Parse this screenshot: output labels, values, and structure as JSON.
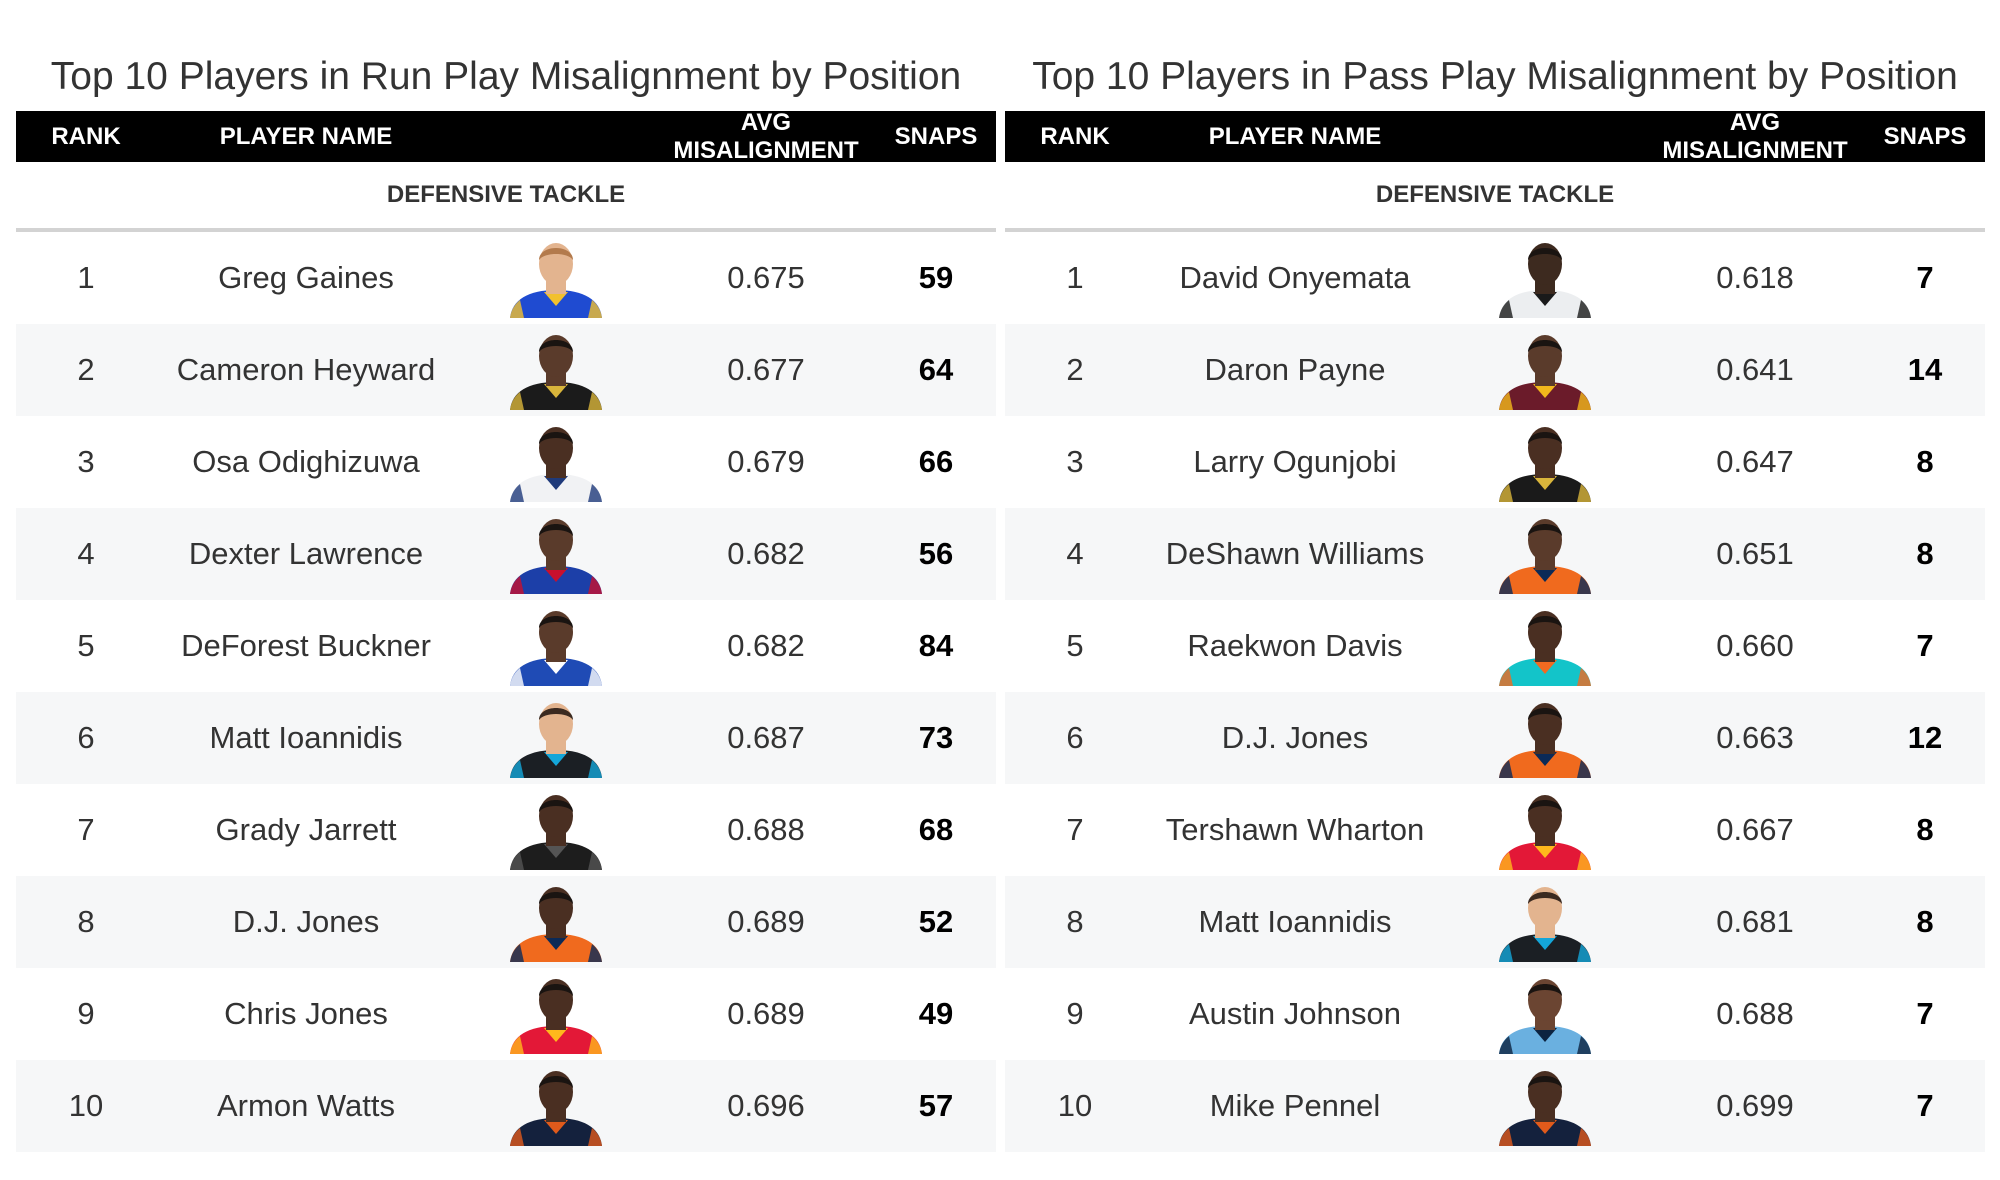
{
  "colors": {
    "header_bg": "#000000",
    "header_text": "#ffffff",
    "row_shade": "#f6f7f8",
    "divider": "#d3d3d3"
  },
  "tables": [
    {
      "id": "run",
      "title": "Top 10 Players in Run Play Misalignment by Position",
      "columns": [
        "RANK",
        "PLAYER NAME",
        "AVG MISALIGNMENT",
        "SNAPS"
      ],
      "group": "DEFENSIVE TACKLE",
      "rows": [
        {
          "rank": "1",
          "name": "Greg Gaines",
          "avg": "0.675",
          "snaps": "59",
          "jersey": "#1f4bd1",
          "trim": "#f2c12e",
          "skin": "#e3b48f",
          "hair": "#b37a4c"
        },
        {
          "rank": "2",
          "name": "Cameron Heyward",
          "avg": "0.677",
          "snaps": "64",
          "jersey": "#1b1b1b",
          "trim": "#d9b53b",
          "skin": "#5a3b2b",
          "hair": "#1a1411"
        },
        {
          "rank": "3",
          "name": "Osa Odighizuwa",
          "avg": "0.679",
          "snaps": "66",
          "jersey": "#f1f2f4",
          "trim": "#1f3a7a",
          "skin": "#4a2f22",
          "hair": "#1a1411"
        },
        {
          "rank": "4",
          "name": "Dexter Lawrence",
          "avg": "0.682",
          "snaps": "56",
          "jersey": "#1c3fa8",
          "trim": "#c8102e",
          "skin": "#5a3b2b",
          "hair": "#1a1411"
        },
        {
          "rank": "5",
          "name": "DeForest Buckner",
          "avg": "0.682",
          "snaps": "84",
          "jersey": "#1f4bb5",
          "trim": "#ffffff",
          "skin": "#5a3b2b",
          "hair": "#1a1411"
        },
        {
          "rank": "6",
          "name": "Matt Ioannidis",
          "avg": "0.687",
          "snaps": "73",
          "jersey": "#1b1f24",
          "trim": "#14a6d9",
          "skin": "#e3b48f",
          "hair": "#3b2a20"
        },
        {
          "rank": "7",
          "name": "Grady Jarrett",
          "avg": "0.688",
          "snaps": "68",
          "jersey": "#1d1d1d",
          "trim": "#555555",
          "skin": "#4a2f22",
          "hair": "#1a1411"
        },
        {
          "rank": "8",
          "name": "D.J. Jones",
          "avg": "0.689",
          "snaps": "52",
          "jersey": "#f06a1e",
          "trim": "#0b2a57",
          "skin": "#4a2f22",
          "hair": "#1a1411"
        },
        {
          "rank": "9",
          "name": "Chris Jones",
          "avg": "0.689",
          "snaps": "49",
          "jersey": "#e31837",
          "trim": "#ffb81c",
          "skin": "#4a2f22",
          "hair": "#1a1411"
        },
        {
          "rank": "10",
          "name": "Armon Watts",
          "avg": "0.696",
          "snaps": "57",
          "jersey": "#14213d",
          "trim": "#e05a1b",
          "skin": "#4a2f22",
          "hair": "#1a1411"
        }
      ]
    },
    {
      "id": "pass",
      "title": "Top 10 Players in Pass Play Misalignment by Position",
      "columns": [
        "RANK",
        "PLAYER NAME",
        "AVG MISALIGNMENT",
        "SNAPS"
      ],
      "group": "DEFENSIVE TACKLE",
      "rows": [
        {
          "rank": "1",
          "name": "David Onyemata",
          "avg": "0.618",
          "snaps": "7",
          "jersey": "#eceef0",
          "trim": "#1a1a1a",
          "skin": "#3d2a1f",
          "hair": "#1a1411"
        },
        {
          "rank": "2",
          "name": "Daron Payne",
          "avg": "0.641",
          "snaps": "14",
          "jersey": "#6b1b2a",
          "trim": "#f2b81c",
          "skin": "#5a3b2b",
          "hair": "#1a1411"
        },
        {
          "rank": "3",
          "name": "Larry Ogunjobi",
          "avg": "0.647",
          "snaps": "8",
          "jersey": "#1a1a1a",
          "trim": "#d9b53b",
          "skin": "#4a2f22",
          "hair": "#1a1411"
        },
        {
          "rank": "4",
          "name": "DeShawn Williams",
          "avg": "0.651",
          "snaps": "8",
          "jersey": "#f06a1e",
          "trim": "#0b2a57",
          "skin": "#5a3b2b",
          "hair": "#1a1411"
        },
        {
          "rank": "5",
          "name": "Raekwon Davis",
          "avg": "0.660",
          "snaps": "7",
          "jersey": "#13c4c9",
          "trim": "#f26a21",
          "skin": "#4a2f22",
          "hair": "#1a1411"
        },
        {
          "rank": "6",
          "name": "D.J. Jones",
          "avg": "0.663",
          "snaps": "12",
          "jersey": "#f06a1e",
          "trim": "#0b2a57",
          "skin": "#4a2f22",
          "hair": "#1a1411"
        },
        {
          "rank": "7",
          "name": "Tershawn Wharton",
          "avg": "0.667",
          "snaps": "8",
          "jersey": "#e31837",
          "trim": "#ffb81c",
          "skin": "#4a2f22",
          "hair": "#1a1411"
        },
        {
          "rank": "8",
          "name": "Matt Ioannidis",
          "avg": "0.681",
          "snaps": "8",
          "jersey": "#1b1f24",
          "trim": "#14a6d9",
          "skin": "#e3b48f",
          "hair": "#3b2a20"
        },
        {
          "rank": "9",
          "name": "Austin Johnson",
          "avg": "0.688",
          "snaps": "7",
          "jersey": "#6ab0e0",
          "trim": "#0c2340",
          "skin": "#6b4532",
          "hair": "#1a1411"
        },
        {
          "rank": "10",
          "name": "Mike Pennel",
          "avg": "0.699",
          "snaps": "7",
          "jersey": "#14213d",
          "trim": "#e05a1b",
          "skin": "#4a2f22",
          "hair": "#1a1411"
        }
      ]
    }
  ],
  "chart_data": [
    {
      "type": "table",
      "title": "Top 10 Players in Run Play Misalignment by Position",
      "columns": [
        "RANK",
        "PLAYER NAME",
        "AVG MISALIGNMENT",
        "SNAPS"
      ],
      "group": "DEFENSIVE TACKLE",
      "rank": [
        1,
        2,
        3,
        4,
        5,
        6,
        7,
        8,
        9,
        10
      ],
      "player": [
        "Greg Gaines",
        "Cameron Heyward",
        "Osa Odighizuwa",
        "Dexter Lawrence",
        "DeForest Buckner",
        "Matt Ioannidis",
        "Grady Jarrett",
        "D.J. Jones",
        "Chris Jones",
        "Armon Watts"
      ],
      "avg_misalignment": [
        0.675,
        0.677,
        0.679,
        0.682,
        0.682,
        0.687,
        0.688,
        0.689,
        0.689,
        0.696
      ],
      "snaps": [
        59,
        64,
        66,
        56,
        84,
        73,
        68,
        52,
        49,
        57
      ]
    },
    {
      "type": "table",
      "title": "Top 10 Players in Pass Play Misalignment by Position",
      "columns": [
        "RANK",
        "PLAYER NAME",
        "AVG MISALIGNMENT",
        "SNAPS"
      ],
      "group": "DEFENSIVE TACKLE",
      "rank": [
        1,
        2,
        3,
        4,
        5,
        6,
        7,
        8,
        9,
        10
      ],
      "player": [
        "David Onyemata",
        "Daron Payne",
        "Larry Ogunjobi",
        "DeShawn Williams",
        "Raekwon Davis",
        "D.J. Jones",
        "Tershawn Wharton",
        "Matt Ioannidis",
        "Austin Johnson",
        "Mike Pennel"
      ],
      "avg_misalignment": [
        0.618,
        0.641,
        0.647,
        0.651,
        0.66,
        0.663,
        0.667,
        0.681,
        0.688,
        0.699
      ],
      "snaps": [
        7,
        14,
        8,
        8,
        7,
        12,
        8,
        8,
        7,
        7
      ]
    }
  ]
}
